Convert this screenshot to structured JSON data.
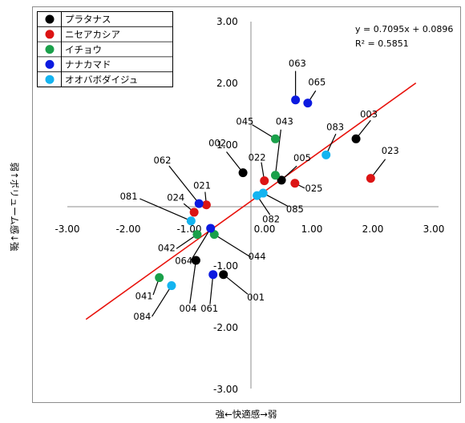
{
  "chart_data": {
    "type": "scatter",
    "xlabel": "強←快適感→弱",
    "ylabel": "弱↑ボリューム感↓強",
    "xlim": [
      -3,
      3
    ],
    "ylim": [
      -3,
      3
    ],
    "x_ticks": [
      "-3.00",
      "-2.00",
      "-1.00",
      "0.00",
      "1.00",
      "2.00",
      "3.00"
    ],
    "y_ticks": [
      "3.00",
      "2.00",
      "1.00",
      "-1.00",
      "-2.00",
      "-3.00"
    ],
    "legend_position": "top-left",
    "trendline": {
      "slope": 0.7095,
      "intercept": 0.0896,
      "x_range": [
        -2.7,
        2.7
      ],
      "equation": "y = 0.7095x + 0.0896",
      "r_squared": "R² = 0.5851",
      "color": "#e8120c"
    },
    "series": [
      {
        "name": "プラタナス",
        "color": "#000000",
        "points": [
          {
            "label": "002",
            "x": -0.13,
            "y": 0.55
          },
          {
            "label": "005",
            "x": 0.5,
            "y": 0.43
          },
          {
            "label": "003",
            "x": 1.72,
            "y": 1.1
          },
          {
            "label": "004",
            "x": -0.9,
            "y": -0.87
          },
          {
            "label": "001",
            "x": -0.45,
            "y": -1.1
          }
        ]
      },
      {
        "name": "ニセアカシア",
        "color": "#dc1414",
        "points": [
          {
            "label": "022",
            "x": 0.22,
            "y": 0.42
          },
          {
            "label": "025",
            "x": 0.72,
            "y": 0.38
          },
          {
            "label": "023",
            "x": 1.96,
            "y": 0.46
          },
          {
            "label": "021",
            "x": -0.73,
            "y": 0.03
          },
          {
            "label": "024",
            "x": -0.93,
            "y": -0.09
          }
        ]
      },
      {
        "name": "イチョウ",
        "color": "#1aa04a",
        "points": [
          {
            "label": "045",
            "x": 0.4,
            "y": 1.1
          },
          {
            "label": "043",
            "x": 0.4,
            "y": 0.51
          },
          {
            "label": "042",
            "x": -0.88,
            "y": -0.45
          },
          {
            "label": "044",
            "x": -0.6,
            "y": -0.45
          },
          {
            "label": "041",
            "x": -1.5,
            "y": -1.15
          }
        ]
      },
      {
        "name": "ナナカマド",
        "color": "#0c1ae0",
        "points": [
          {
            "label": "063",
            "x": 0.73,
            "y": 1.73
          },
          {
            "label": "065",
            "x": 0.93,
            "y": 1.68
          },
          {
            "label": "062",
            "x": -0.85,
            "y": 0.05
          },
          {
            "label": "064",
            "x": -0.66,
            "y": -0.35
          },
          {
            "label": "061",
            "x": -0.62,
            "y": -1.1
          }
        ]
      },
      {
        "name": "オオバボダイジュ",
        "color": "#14b4f0",
        "points": [
          {
            "label": "083",
            "x": 1.23,
            "y": 0.84
          },
          {
            "label": "085",
            "x": 0.2,
            "y": 0.22
          },
          {
            "label": "082",
            "x": 0.1,
            "y": 0.18
          },
          {
            "label": "081",
            "x": -0.98,
            "y": -0.23
          },
          {
            "label": "084",
            "x": -1.3,
            "y": -1.28
          }
        ]
      }
    ],
    "point_labels": [
      {
        "label": "063",
        "tx": 0.76,
        "ty": 2.27,
        "lx": 0.73,
        "ly": 2.2
      },
      {
        "label": "065",
        "tx": 1.08,
        "ty": 1.97,
        "lx": 1.06,
        "ly": 1.88
      },
      {
        "label": "045",
        "tx": -0.1,
        "ty": 1.33,
        "lx": 0.02,
        "ly": 1.33
      },
      {
        "label": "043",
        "tx": 0.55,
        "ty": 1.33,
        "lx": 0.49,
        "ly": 1.25
      },
      {
        "label": "003",
        "tx": 1.93,
        "ty": 1.45,
        "lx": 1.96,
        "ly": 1.4
      },
      {
        "label": "083",
        "tx": 1.38,
        "ty": 1.24,
        "lx": 1.39,
        "ly": 1.18
      },
      {
        "label": "023",
        "tx": 2.28,
        "ty": 0.86,
        "lx": 2.2,
        "ly": 0.77
      },
      {
        "label": "002",
        "tx": -0.55,
        "ty": 0.98,
        "lx": -0.4,
        "ly": 0.89
      },
      {
        "label": "022",
        "tx": 0.1,
        "ty": 0.75,
        "lx": 0.17,
        "ly": 0.72
      },
      {
        "label": "005",
        "tx": 0.84,
        "ty": 0.74,
        "lx": 0.75,
        "ly": 0.66
      },
      {
        "label": "062",
        "tx": -1.45,
        "ty": 0.7,
        "lx": -1.34,
        "ly": 0.66
      },
      {
        "label": "021",
        "tx": -0.8,
        "ty": 0.29,
        "lx": -0.75,
        "ly": 0.24
      },
      {
        "label": "025",
        "tx": 1.03,
        "ty": 0.25,
        "lx": 0.88,
        "ly": 0.3
      },
      {
        "label": "081",
        "tx": -2.0,
        "ty": 0.12,
        "lx": -1.82,
        "ly": 0.13
      },
      {
        "label": "024",
        "tx": -1.23,
        "ty": 0.1,
        "lx": -1.1,
        "ly": 0.05
      },
      {
        "label": "085",
        "tx": 0.72,
        "ty": -0.09,
        "lx": 0.6,
        "ly": 0.01
      },
      {
        "label": "082",
        "tx": 0.33,
        "ty": -0.25,
        "lx": 0.31,
        "ly": -0.13
      },
      {
        "label": "042",
        "tx": -1.38,
        "ty": -0.72,
        "lx": -1.22,
        "ly": -0.68
      },
      {
        "label": "044",
        "tx": 0.1,
        "ty": -0.86,
        "lx": 0.0,
        "ly": -0.82
      },
      {
        "label": "064",
        "tx": -1.1,
        "ty": -0.93,
        "lx": -1.0,
        "ly": -0.9
      },
      {
        "label": "041",
        "tx": -1.75,
        "ty": -1.5,
        "lx": -1.6,
        "ly": -1.43
      },
      {
        "label": "061",
        "tx": -0.68,
        "ty": -1.7,
        "lx": -0.67,
        "ly": -1.58
      },
      {
        "label": "001",
        "tx": 0.08,
        "ty": -1.52,
        "lx": -0.05,
        "ly": -1.42
      },
      {
        "label": "004",
        "tx": -1.03,
        "ty": -1.7,
        "lx": -1.0,
        "ly": -1.57
      },
      {
        "label": "084",
        "tx": -1.78,
        "ty": -1.83,
        "lx": -1.62,
        "ly": -1.78
      }
    ]
  }
}
